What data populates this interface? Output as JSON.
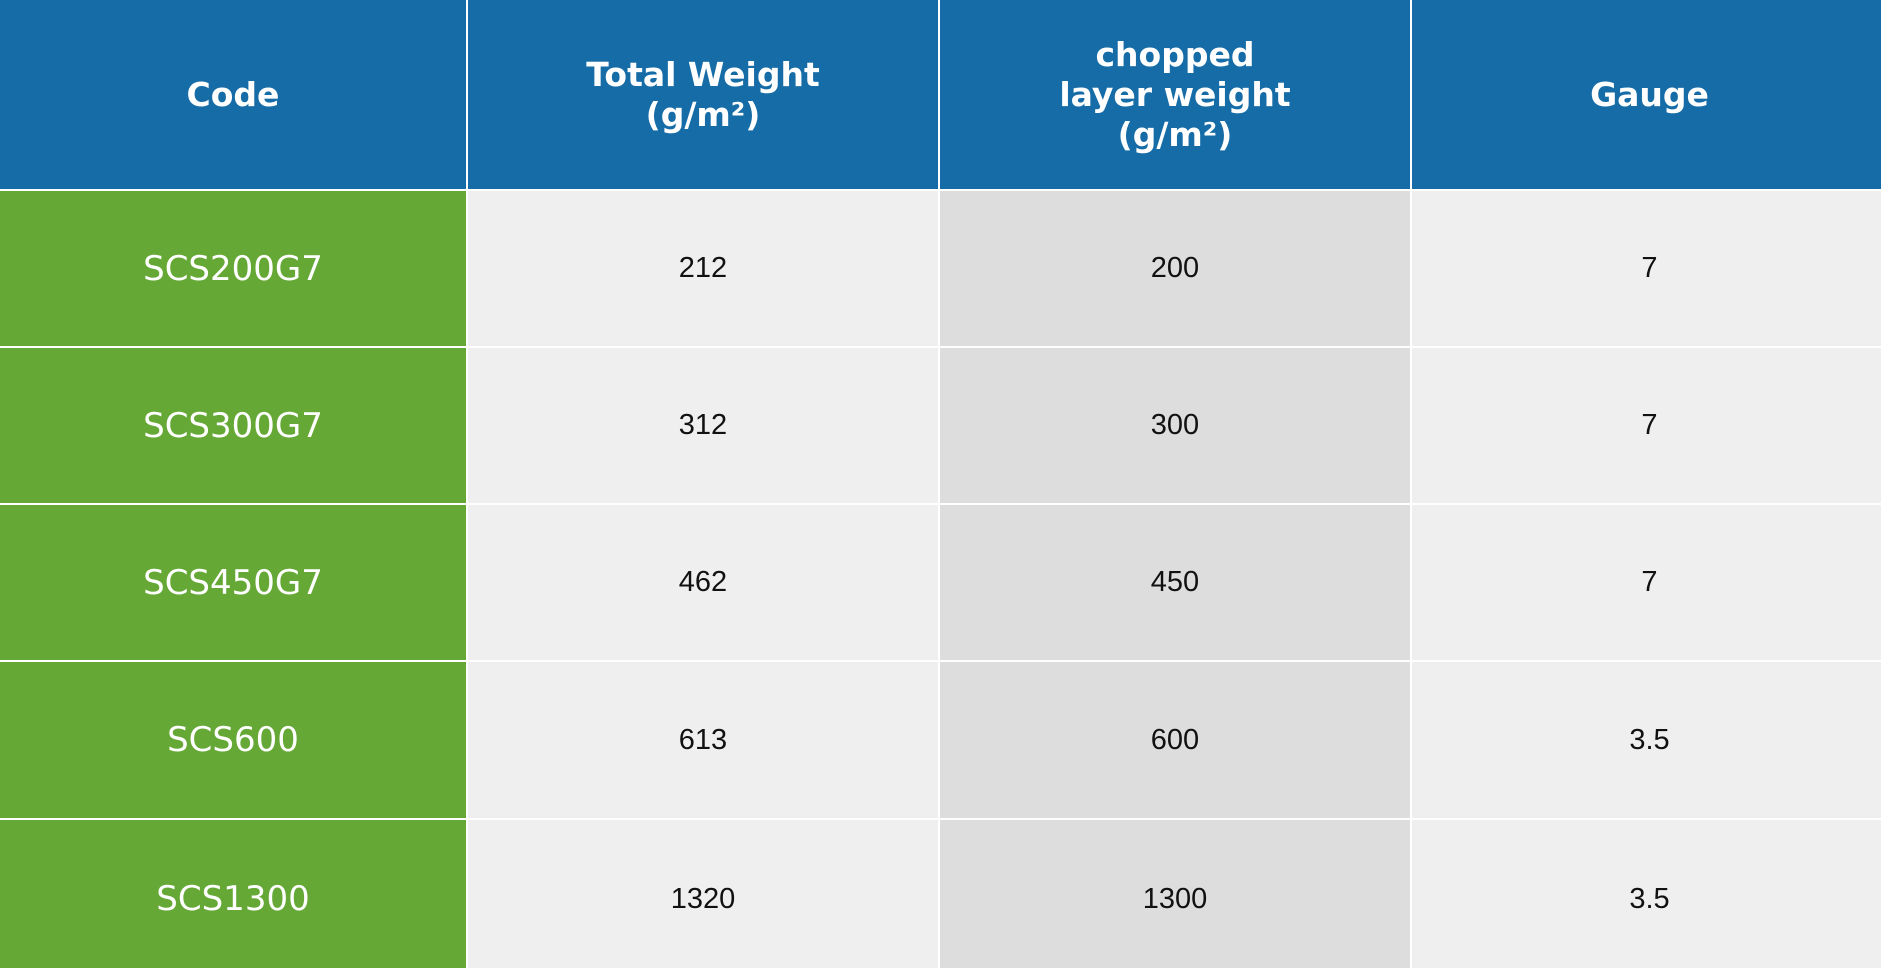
{
  "colors": {
    "header_bg": "#166ca6",
    "code_bg": "#65a835",
    "cell_bg": "#efefef",
    "cell_alt_bg": "#dcdddc",
    "divider": "#ffffff"
  },
  "table": {
    "headers": {
      "code": [
        "Code"
      ],
      "total_weight": [
        "Total Weight",
        "(g/m²)"
      ],
      "chopped": [
        "chopped",
        "layer weight",
        "(g/m²)"
      ],
      "gauge": [
        "Gauge"
      ]
    },
    "rows": [
      {
        "code": "SCS200G7",
        "total_weight": "212",
        "chopped": "200",
        "gauge": "7"
      },
      {
        "code": "SCS300G7",
        "total_weight": "312",
        "chopped": "300",
        "gauge": "7"
      },
      {
        "code": "SCS450G7",
        "total_weight": "462",
        "chopped": "450",
        "gauge": "7"
      },
      {
        "code": "SCS600",
        "total_weight": "613",
        "chopped": "600",
        "gauge": "3.5"
      },
      {
        "code": "SCS1300",
        "total_weight": "1320",
        "chopped": "1300",
        "gauge": "3.5"
      }
    ]
  }
}
